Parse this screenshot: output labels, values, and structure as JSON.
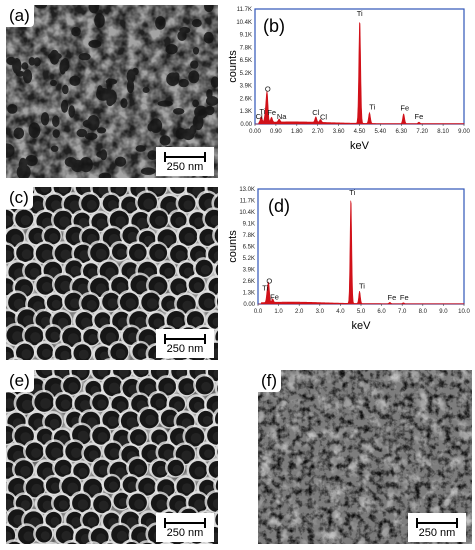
{
  "panels": {
    "a": {
      "label": "(a)",
      "scale": "250 nm"
    },
    "b": {
      "label": "(b)"
    },
    "c": {
      "label": "(c)",
      "scale": "250 nm"
    },
    "d": {
      "label": "(d)"
    },
    "e": {
      "label": "(e)",
      "scale": "250 nm"
    },
    "f": {
      "label": "(f)",
      "scale": "250 nm"
    }
  },
  "colors": {
    "spectrum": "#d11019",
    "axis_frame": "#2f55b8"
  },
  "chart_data": [
    {
      "type": "line",
      "panel": "b",
      "xlabel": "keV",
      "ylabel": "counts",
      "xticks": [
        "0.00",
        "0.90",
        "1.80",
        "2.70",
        "3.60",
        "4.50",
        "5.40",
        "6.30",
        "7.20",
        "8.10",
        "9.00"
      ],
      "yticks": [
        "0.00",
        "1.3K",
        "2.6K",
        "3.9K",
        "5.2K",
        "6.5K",
        "7.8K",
        "9.1K",
        "10.4K",
        "11.7K"
      ],
      "xlim": [
        0,
        9.0
      ],
      "ylim": [
        0,
        11700
      ],
      "peaks": [
        {
          "x": 0.27,
          "y": 600
        },
        {
          "x": 0.45,
          "y": 900
        },
        {
          "x": 0.52,
          "y": 3000
        },
        {
          "x": 0.71,
          "y": 500
        },
        {
          "x": 1.04,
          "y": 300
        },
        {
          "x": 2.62,
          "y": 550
        },
        {
          "x": 2.82,
          "y": 300
        },
        {
          "x": 4.51,
          "y": 10600
        },
        {
          "x": 4.93,
          "y": 1100
        },
        {
          "x": 6.4,
          "y": 1000
        },
        {
          "x": 7.06,
          "y": 150
        }
      ],
      "peak_labels": [
        {
          "text": "Cl",
          "x": 0.18,
          "y": 300
        },
        {
          "text": "Ti",
          "x": 0.32,
          "y": 800
        },
        {
          "text": "O",
          "x": 0.55,
          "y": 3100
        },
        {
          "text": "Fe",
          "x": 0.72,
          "y": 700
        },
        {
          "text": "Na",
          "x": 1.15,
          "y": 300
        },
        {
          "text": "Cl",
          "x": 2.62,
          "y": 700
        },
        {
          "text": "Cl",
          "x": 2.95,
          "y": 250
        },
        {
          "text": "Ti",
          "x": 4.51,
          "y": 10800
        },
        {
          "text": "Ti",
          "x": 5.05,
          "y": 1250
        },
        {
          "text": "Fe",
          "x": 6.45,
          "y": 1150
        },
        {
          "text": "Fe",
          "x": 7.06,
          "y": 300
        }
      ]
    },
    {
      "type": "line",
      "panel": "d",
      "xlabel": "keV",
      "ylabel": "counts",
      "xticks": [
        "0.0",
        "1.0",
        "2.0",
        "3.0",
        "4.0",
        "5.0",
        "6.0",
        "7.0",
        "8.0",
        "9.0",
        "10.0"
      ],
      "yticks": [
        "0.00",
        "1.3K",
        "2.6K",
        "3.9K",
        "5.2K",
        "6.5K",
        "7.8K",
        "9.1K",
        "10.4K",
        "11.7K",
        "13.0K"
      ],
      "xlim": [
        0,
        10.0
      ],
      "ylim": [
        0,
        13000
      ],
      "peaks": [
        {
          "x": 0.45,
          "y": 1200
        },
        {
          "x": 0.52,
          "y": 2000
        },
        {
          "x": 0.71,
          "y": 400
        },
        {
          "x": 4.51,
          "y": 12000
        },
        {
          "x": 4.93,
          "y": 1400
        },
        {
          "x": 6.4,
          "y": 150
        },
        {
          "x": 7.06,
          "y": 100
        }
      ],
      "peak_labels": [
        {
          "text": "Ti",
          "x": 0.35,
          "y": 1300
        },
        {
          "text": "O",
          "x": 0.55,
          "y": 2100
        },
        {
          "text": "Fe",
          "x": 0.8,
          "y": 300
        },
        {
          "text": "Ti",
          "x": 4.58,
          "y": 12100
        },
        {
          "text": "Ti",
          "x": 5.05,
          "y": 1500
        },
        {
          "text": "Fe",
          "x": 6.5,
          "y": 250
        },
        {
          "text": "Fe",
          "x": 7.1,
          "y": 250
        }
      ]
    }
  ]
}
